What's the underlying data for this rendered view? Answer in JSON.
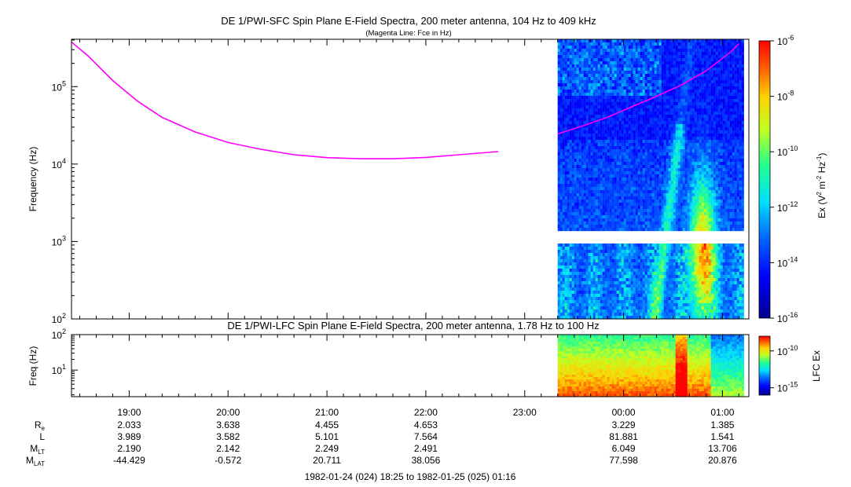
{
  "chart_data": [
    {
      "type": "heatmap",
      "panel": "SFC",
      "title": "DE 1/PWI-SFC  Spin Plane E-Field Spectra, 200 meter antenna, 104 Hz to 409 kHz",
      "subtitle": "(Magenta Line: Fce in Hz)",
      "ylabel": "Frequency (Hz)",
      "yscale": "log",
      "ylim": [
        100,
        409000
      ],
      "yticks": [
        {
          "base": "10",
          "exp": "2",
          "value": 100
        },
        {
          "base": "10",
          "exp": "3",
          "value": 1000
        },
        {
          "base": "10",
          "exp": "4",
          "value": 10000
        },
        {
          "base": "10",
          "exp": "5",
          "value": 100000
        }
      ],
      "colorbar": {
        "label": "Ex (V2 m-2 Hz-1)",
        "label_parts": {
          "pre": "Ex (V",
          "sup1": "2",
          "mid": " m",
          "sup2": "-2",
          "mid2": " Hz",
          "sup3": "-1",
          "post": ")"
        },
        "scale": "log",
        "range": [
          1e-16,
          1e-06
        ],
        "ticks": [
          {
            "base": "10",
            "exp": "-6",
            "value": 1e-06
          },
          {
            "base": "10",
            "exp": "-8",
            "value": 1e-08
          },
          {
            "base": "10",
            "exp": "-10",
            "value": 1e-10
          },
          {
            "base": "10",
            "exp": "-12",
            "value": 1e-12
          },
          {
            "base": "10",
            "exp": "-14",
            "value": 1e-14
          },
          {
            "base": "10",
            "exp": "-16",
            "value": 1e-16
          }
        ]
      },
      "data_coverage": {
        "start": "23:20",
        "end": "01:12"
      },
      "data_gap_hz": [
        1000,
        1300
      ],
      "series": [
        {
          "name": "Fce",
          "color": "#ff00ff",
          "points": [
            [
              "18:23",
              409000
            ],
            [
              "18:35",
              250000
            ],
            [
              "18:50",
              120000
            ],
            [
              "19:05",
              65000
            ],
            [
              "19:20",
              40000
            ],
            [
              "19:40",
              26000
            ],
            [
              "20:00",
              19000
            ],
            [
              "20:20",
              15500
            ],
            [
              "20:40",
              13200
            ],
            [
              "21:00",
              12100
            ],
            [
              "21:20",
              11700
            ],
            [
              "21:40",
              11700
            ],
            [
              "22:00",
              12200
            ],
            [
              "22:20",
              13200
            ],
            [
              "22:44",
              14500
            ]
          ]
        },
        {
          "name": "Fce",
          "color": "#ff00ff",
          "points": [
            [
              "23:20",
              24500
            ],
            [
              "23:35",
              31000
            ],
            [
              "23:50",
              40000
            ],
            [
              "00:05",
              55000
            ],
            [
              "00:20",
              75000
            ],
            [
              "00:35",
              105000
            ],
            [
              "00:50",
              160000
            ],
            [
              "01:05",
              280000
            ],
            [
              "01:10",
              360000
            ]
          ]
        }
      ]
    },
    {
      "type": "heatmap",
      "panel": "LFC",
      "title": "DE 1/PWI-LFC  Spin Plane E-Field Spectra, 200 meter antenna, 1.78 Hz to 100 Hz",
      "ylabel": "Freq (Hz)",
      "yscale": "log",
      "ylim": [
        1.78,
        100
      ],
      "yticks": [
        {
          "base": "10",
          "exp": "1",
          "value": 10
        },
        {
          "base": "10",
          "exp": "2",
          "value": 100
        }
      ],
      "colorbar": {
        "label": "LFC Ex",
        "scale": "log",
        "range": [
          1e-16,
          1e-08
        ],
        "ticks": [
          {
            "base": "10",
            "exp": "-10",
            "value": 1e-10
          },
          {
            "base": "10",
            "exp": "-15",
            "value": 1e-15
          }
        ]
      },
      "data_coverage": {
        "start": "23:20",
        "end": "01:12"
      }
    }
  ],
  "xaxis": {
    "range": [
      "18:25",
      "01:16"
    ],
    "ticks": [
      "19:00",
      "20:00",
      "21:00",
      "22:00",
      "23:00",
      "00:00",
      "01:00"
    ]
  },
  "ephemeris": {
    "rows": [
      {
        "label": "R",
        "sub": "e",
        "values": [
          "2.033",
          "3.638",
          "4.455",
          "4.653",
          "",
          "3.229",
          "1.385"
        ]
      },
      {
        "label": "L",
        "sub": "",
        "values": [
          "3.989",
          "3.582",
          "5.101",
          "7.564",
          "",
          "81.881",
          "1.541"
        ]
      },
      {
        "label": "M",
        "sub": "LT",
        "values": [
          "2.190",
          "2.142",
          "2.249",
          "2.491",
          "",
          "6.049",
          "13.706"
        ]
      },
      {
        "label": "M",
        "sub": "LAT",
        "values": [
          "-44.429",
          "-0.572",
          "20.711",
          "38.056",
          "",
          "77.598",
          "20.876"
        ]
      }
    ]
  },
  "time_range_label": "1982-01-24 (024) 18:25 to 1982-01-25 (025) 01:16"
}
